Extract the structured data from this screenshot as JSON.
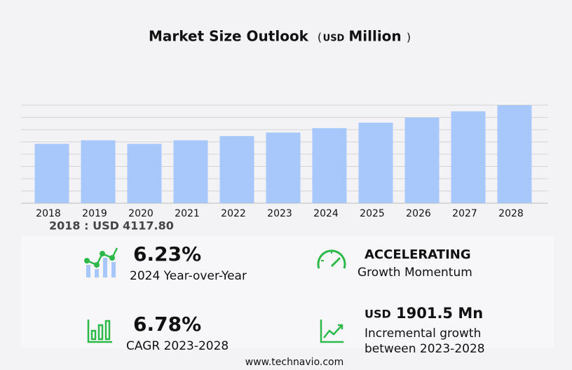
{
  "chart_data": {
    "type": "bar",
    "title": "Market Size Outlook",
    "unit": {
      "open": "(",
      "currency": "USD",
      "name": "Million",
      "close": ")"
    },
    "categories": [
      "2018",
      "2019",
      "2020",
      "2021",
      "2022",
      "2023",
      "2024",
      "2025",
      "2026",
      "2027",
      "2028"
    ],
    "values": [
      4117.8,
      4362,
      4118,
      4362,
      4657,
      4901,
      5206,
      5588,
      5931,
      6373,
      6802.5
    ],
    "color": "#a8c8fb",
    "ylim": [
      0,
      6802.5
    ],
    "grid": true
  },
  "base_year": {
    "label": "2018 : USD",
    "value": "4117.80"
  },
  "kpis": [
    {
      "value": "6.23%",
      "label": "2024 Year-over-Year"
    },
    {
      "value": "ACCELERATING",
      "label": "Growth Momentum"
    },
    {
      "value": "6.78%",
      "label": "CAGR 2023-2028"
    },
    {
      "currency": "USD",
      "value": "1901.5 Mn",
      "label": "Incremental growth",
      "label2": "between 2023-2028"
    }
  ],
  "footer": "www.technavio.com"
}
